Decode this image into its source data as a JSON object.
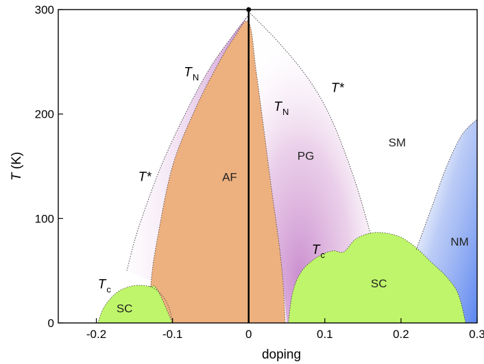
{
  "chart_data": {
    "type": "phase-diagram",
    "xlabel": "doping",
    "ylabel": {
      "main": "T",
      "unit": " (K)"
    },
    "xlim": [
      -0.25,
      0.3
    ],
    "ylim": [
      0,
      300
    ],
    "x_ticks": [
      "-0.2",
      "-0.1",
      "0",
      "0.1",
      "0.2",
      "0.3"
    ],
    "x_tick_values": [
      -0.2,
      -0.1,
      0,
      0.1,
      0.2,
      0.3
    ],
    "y_ticks": [
      "0",
      "100",
      "200",
      "300"
    ],
    "y_tick_values": [
      0,
      100,
      200,
      300
    ],
    "regions": [
      {
        "id": "af",
        "label": "AF",
        "color": "#EDB07F",
        "boundary": [
          [
            -0.13,
            0
          ],
          [
            -0.128,
            40
          ],
          [
            -0.12,
            80
          ],
          [
            -0.1,
            150
          ],
          [
            -0.07,
            205
          ],
          [
            -0.04,
            248
          ],
          [
            -0.02,
            272
          ],
          [
            0,
            288
          ],
          [
            0.01,
            240
          ],
          [
            0.02,
            185
          ],
          [
            0.03,
            128
          ],
          [
            0.04,
            75
          ],
          [
            0.045,
            40
          ],
          [
            0.048,
            0
          ]
        ]
      },
      {
        "id": "pg",
        "label": "PG",
        "color": "#C27BC7"
      },
      {
        "id": "sm",
        "label": "SM"
      },
      {
        "id": "nm",
        "label": "NM",
        "color": "#5C86F0"
      },
      {
        "id": "sc-hole",
        "label": "SC",
        "color": "#BFF56A",
        "boundary": [
          [
            -0.198,
            0
          ],
          [
            -0.19,
            15
          ],
          [
            -0.175,
            28
          ],
          [
            -0.16,
            34
          ],
          [
            -0.145,
            36
          ],
          [
            -0.13,
            35
          ],
          [
            -0.12,
            32
          ],
          [
            -0.1,
            0
          ]
        ]
      },
      {
        "id": "sc-electron",
        "label": "SC",
        "color": "#BFF56A",
        "boundary": [
          [
            0.052,
            0
          ],
          [
            0.058,
            30
          ],
          [
            0.07,
            50
          ],
          [
            0.09,
            63
          ],
          [
            0.11,
            69
          ],
          [
            0.125,
            68
          ],
          [
            0.14,
            80
          ],
          [
            0.16,
            86
          ],
          [
            0.18,
            86
          ],
          [
            0.2,
            82
          ],
          [
            0.22,
            72
          ],
          [
            0.24,
            58
          ],
          [
            0.26,
            44
          ],
          [
            0.275,
            28
          ],
          [
            0.285,
            0
          ]
        ]
      }
    ],
    "boundaries": [
      {
        "id": "tstar-hole",
        "label": "T*",
        "points": [
          [
            -0.16,
            50
          ],
          [
            -0.145,
            90
          ],
          [
            -0.115,
            150
          ],
          [
            -0.08,
            205
          ],
          [
            -0.05,
            245
          ],
          [
            -0.02,
            276
          ],
          [
            0,
            295
          ]
        ]
      },
      {
        "id": "tstar-electron",
        "label": "T*",
        "points": [
          [
            0,
            298
          ],
          [
            0.04,
            268
          ],
          [
            0.08,
            232
          ],
          [
            0.11,
            193
          ],
          [
            0.14,
            135
          ],
          [
            0.16,
            85
          ]
        ]
      },
      {
        "id": "nm-boundary",
        "points": [
          [
            0.22,
            70
          ],
          [
            0.24,
            110
          ],
          [
            0.26,
            150
          ],
          [
            0.28,
            180
          ],
          [
            0.3,
            195
          ]
        ]
      }
    ],
    "annotations": [
      {
        "id": "tn-hole",
        "main": "T",
        "sub": "N",
        "x": -0.085,
        "y": 240
      },
      {
        "id": "tn-electron",
        "main": "T",
        "sub": "N",
        "x": 0.033,
        "y": 207
      },
      {
        "id": "tstar-hole-label",
        "main": "T*",
        "sub": "",
        "x": -0.145,
        "y": 140
      },
      {
        "id": "tstar-electron-label",
        "main": "T*",
        "sub": "",
        "x": 0.108,
        "y": 225
      },
      {
        "id": "tc-hole",
        "main": "T",
        "sub": "c",
        "x": -0.198,
        "y": 37
      },
      {
        "id": "tc-electron",
        "main": "T",
        "sub": "c",
        "x": 0.083,
        "y": 70
      }
    ],
    "region_labels": [
      {
        "id": "af",
        "text": "AF",
        "x": -0.025,
        "y": 140
      },
      {
        "id": "pg",
        "text": "PG",
        "x": 0.075,
        "y": 160
      },
      {
        "id": "sm",
        "text": "SM",
        "x": 0.195,
        "y": 173
      },
      {
        "id": "nm",
        "text": "NM",
        "x": 0.277,
        "y": 78
      },
      {
        "id": "sc-hole",
        "text": "SC",
        "x": -0.163,
        "y": 14
      },
      {
        "id": "sc-electron",
        "text": "SC",
        "x": 0.171,
        "y": 38
      }
    ],
    "vertical_line_x": 0,
    "grid": false,
    "legend": "none"
  }
}
